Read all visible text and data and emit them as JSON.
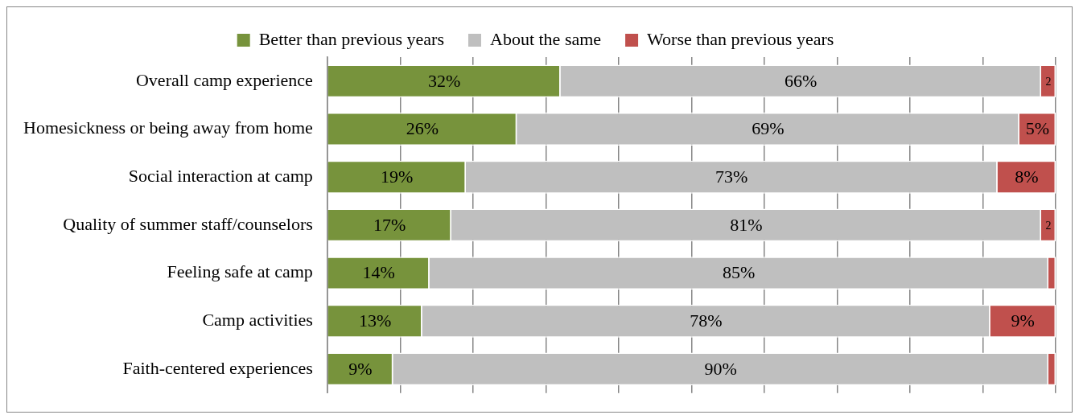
{
  "chart_data": {
    "type": "bar",
    "orientation": "horizontal",
    "stacked": true,
    "categories": [
      "Overall camp experience",
      "Homesickness or being away from home",
      "Social interaction at camp",
      "Quality of summer staff/counselors",
      "Feeling safe at camp",
      "Camp activities",
      "Faith-centered experiences"
    ],
    "series": [
      {
        "name": "Better than previous years",
        "color": "#77933c",
        "values": [
          32,
          26,
          19,
          17,
          14,
          13,
          9
        ],
        "value_labels": [
          "32%",
          "26%",
          "19%",
          "17%",
          "14%",
          "13%",
          "9%"
        ]
      },
      {
        "name": "About the same",
        "color": "#bfbfbf",
        "values": [
          66,
          69,
          73,
          81,
          85,
          78,
          90
        ],
        "value_labels": [
          "66%",
          "69%",
          "73%",
          "81%",
          "85%",
          "78%",
          "90%"
        ]
      },
      {
        "name": "Worse than previous years",
        "color": "#c0504d",
        "values": [
          2,
          5,
          8,
          2,
          1,
          9,
          1
        ],
        "value_labels": [
          "2",
          "5%",
          "8%",
          "2",
          null,
          "9%",
          null
        ]
      }
    ],
    "xlim": [
      0,
      100
    ],
    "xticks": [
      {
        "value": 0,
        "label": null
      },
      {
        "value": 10,
        "label": null
      },
      {
        "value": 20,
        "label": null
      },
      {
        "value": 30,
        "label": null
      },
      {
        "value": 40,
        "label": null
      },
      {
        "value": 50,
        "label": null
      },
      {
        "value": 60,
        "label": null
      },
      {
        "value": 70,
        "label": null
      },
      {
        "value": 80,
        "label": null
      },
      {
        "value": 90,
        "label": null
      },
      {
        "value": 100,
        "label": null
      }
    ],
    "grid": "x",
    "legend": "top",
    "tick_labels": "y"
  }
}
